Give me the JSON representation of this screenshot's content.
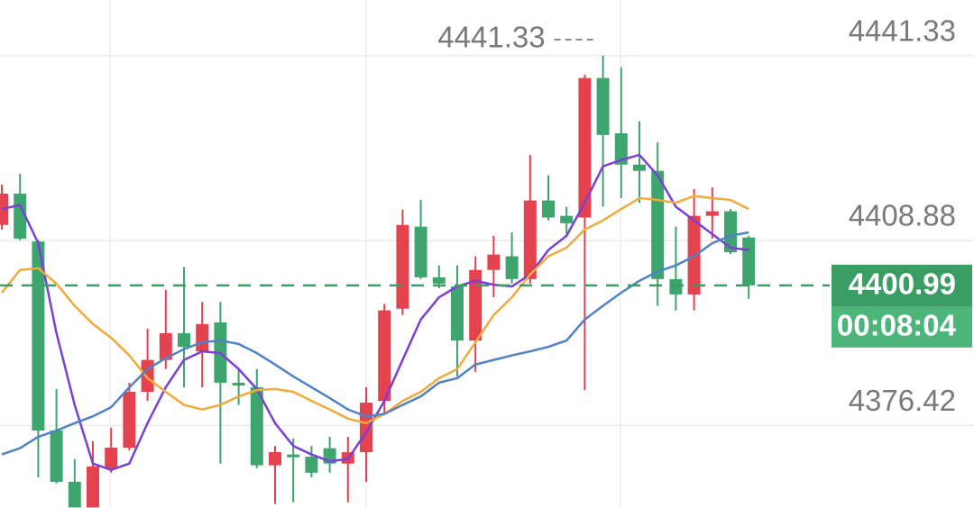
{
  "chart_data": {
    "type": "candlestick",
    "open": [
      4411.6,
      4417.1,
      4408.7,
      4375.5,
      4366.5,
      4362.0,
      4368.9,
      4372.5,
      4382.3,
      4387.9,
      4392.6,
      4389.4,
      4394.5,
      4383.9,
      4383.1,
      4369.4,
      4371.3,
      4370.9,
      4372.4,
      4369.7,
      4371.7,
      4380.7,
      4396.9,
      4411.3,
      4402.4,
      4400.8,
      4391.3,
      4403.7,
      4406.1,
      4402.1,
      4415.9,
      4413.2,
      4412.9,
      4437.4,
      4427.7,
      4422.2,
      4421.1,
      4402.1,
      4399.4,
      4413.2,
      4414.0,
      4409.4
    ],
    "high": [
      4418.7,
      4420.6,
      4409.0,
      4382.8,
      4370.5,
      4373.6,
      4376.0,
      4383.9,
      4393.4,
      4400.2,
      4404.2,
      4398.1,
      4398.1,
      4386.3,
      4386.3,
      4372.8,
      4374.1,
      4372.8,
      4374.4,
      4374.4,
      4383.1,
      4397.7,
      4414.3,
      4416.0,
      4404.5,
      4404.5,
      4406.1,
      4409.7,
      4410.3,
      4423.9,
      4420.3,
      4414.8,
      4438.0,
      4441.33,
      4439.3,
      4429.8,
      4426.1,
      4411.3,
      4417.9,
      4418.2,
      4414.4,
      4409.7
    ],
    "low": [
      4410.8,
      4408.9,
      4367.3,
      4366.2,
      4362.0,
      4362.0,
      4368.1,
      4372.0,
      4380.7,
      4386.3,
      4383.1,
      4383.1,
      4369.7,
      4380.0,
      4368.9,
      4362.6,
      4362.9,
      4367.3,
      4368.1,
      4362.9,
      4366.5,
      4378.4,
      4395.8,
      4402.1,
      4400.5,
      4385.0,
      4385.8,
      4398.9,
      4401.3,
      4401.3,
      4412.4,
      4410.0,
      4382.6,
      4414.8,
      4416.3,
      4415.5,
      4397.4,
      4396.6,
      4396.6,
      4409.2,
      4406.5,
      4398.6
    ],
    "close": [
      4417.1,
      4409.2,
      4375.5,
      4366.5,
      4362.0,
      4369.2,
      4372.5,
      4382.3,
      4387.9,
      4392.6,
      4390.2,
      4394.2,
      4383.9,
      4383.4,
      4369.4,
      4371.7,
      4370.8,
      4368.1,
      4369.7,
      4371.7,
      4380.4,
      4396.6,
      4411.6,
      4402.4,
      4401.3,
      4391.3,
      4403.7,
      4406.4,
      4402.1,
      4415.9,
      4412.9,
      4411.9,
      4437.4,
      4427.4,
      4422.2,
      4421.1,
      4402.1,
      4399.4,
      4413.2,
      4414.0,
      4406.8,
      4401.0
    ],
    "up_color": "#e5424f",
    "down_color": "#3fa56e",
    "moving_averages": [
      {
        "color": "#7a3fd8",
        "values": [
          4414.4,
          4415.1,
          4408.4,
          4392.6,
          4380.0,
          4369.7,
          4368.6,
          4369.7,
          4376.8,
          4383.1,
          4387.9,
          4389.4,
          4389.1,
          4386.3,
          4382.8,
          4376.8,
          4372.8,
          4371.3,
          4370.1,
          4370.5,
          4375.2,
          4380.7,
          4387.9,
          4395.0,
          4398.9,
          4400.8,
          4401.8,
          4401.1,
          4400.8,
          4402.9,
          4407.2,
          4409.7,
          4415.5,
          4421.9,
          4423.0,
          4423.9,
          4420.3,
          4414.8,
          4412.4,
          4410.0,
          4407.6,
          4407.2
        ]
      },
      {
        "color": "#f2aa3a",
        "values": [
          4399.7,
          4403.7,
          4404.0,
          4401.3,
          4397.4,
          4394.2,
          4391.8,
          4388.7,
          4384.7,
          4382.3,
          4380.0,
          4379.2,
          4380.0,
          4381.5,
          4382.6,
          4382.8,
          4382.3,
          4380.7,
          4379.2,
          4377.6,
          4376.8,
          4378.4,
          4380.7,
          4382.3,
          4384.7,
          4386.3,
          4391.0,
          4395.8,
          4398.9,
          4402.9,
          4406.1,
          4407.6,
          4410.8,
          4412.4,
          4414.4,
          4416.3,
          4416.0,
          4415.5,
          4416.7,
          4416.3,
          4416.0,
          4414.4
        ]
      },
      {
        "color": "#5082c8",
        "values": [
          4371.3,
          4372.4,
          4374.4,
          4375.5,
          4376.8,
          4378.0,
          4379.6,
          4383.1,
          4386.3,
          4388.2,
          4389.8,
          4391.0,
          4391.3,
          4390.7,
          4389.1,
          4387.1,
          4385.0,
          4383.1,
          4381.2,
          4379.2,
          4378.0,
          4378.4,
          4380.0,
          4381.5,
          4383.9,
          4384.7,
          4387.1,
          4387.9,
          4388.7,
          4389.4,
          4390.2,
          4391.3,
          4395.0,
          4397.4,
          4399.7,
          4401.8,
          4403.4,
          4404.5,
          4406.1,
          4408.4,
          4409.7,
          4410.3
        ]
      }
    ],
    "ylim": [
      4361.9,
      4451.1
    ],
    "yticks": [
      4441.33,
      4408.88,
      4376.42
    ],
    "grid": true,
    "last_price": 4400.99,
    "last_price_color": "#3a9d64",
    "countdown": "00:08:04"
  }
}
